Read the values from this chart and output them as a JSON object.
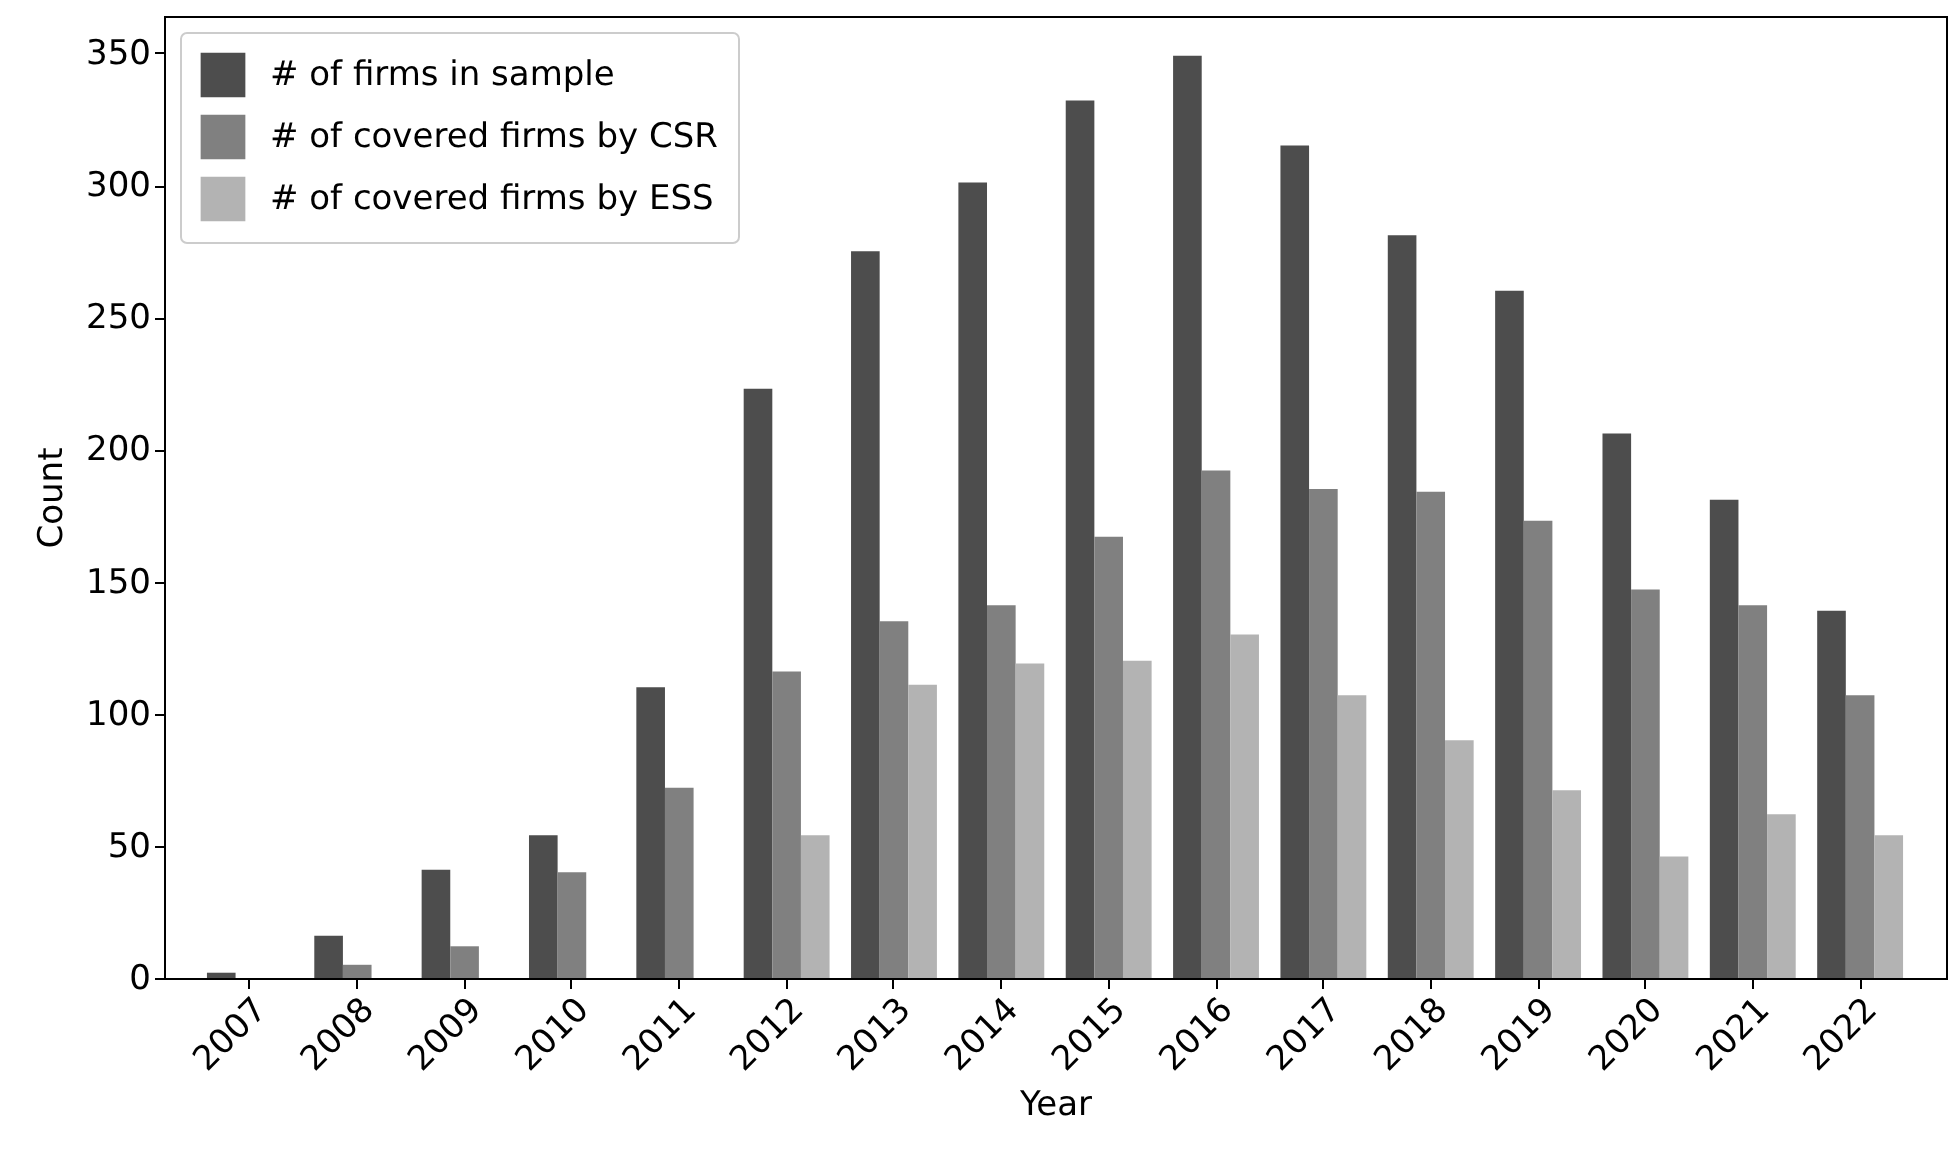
{
  "chart_data": {
    "type": "bar",
    "xlabel": "Year",
    "ylabel": "Count",
    "categories": [
      "2007",
      "2008",
      "2009",
      "2010",
      "2011",
      "2012",
      "2013",
      "2014",
      "2015",
      "2016",
      "2017",
      "2018",
      "2019",
      "2020",
      "2021",
      "2022"
    ],
    "series": [
      {
        "name": "# of firms in sample",
        "color": "#4d4d4d",
        "values": [
          2,
          16,
          41,
          54,
          110,
          223,
          275,
          301,
          332,
          349,
          315,
          281,
          260,
          206,
          181,
          139
        ]
      },
      {
        "name": "# of covered firms by CSR",
        "color": "#808080",
        "values": [
          0,
          5,
          12,
          40,
          72,
          116,
          135,
          141,
          167,
          192,
          185,
          184,
          173,
          147,
          141,
          107
        ]
      },
      {
        "name": "# of covered firms by ESS",
        "color": "#b3b3b3",
        "values": [
          0,
          0,
          0,
          0,
          0,
          54,
          111,
          119,
          120,
          130,
          107,
          90,
          71,
          46,
          62,
          54
        ]
      }
    ],
    "ylim": [
      0,
      364
    ],
    "yticks": [
      0,
      50,
      100,
      150,
      200,
      250,
      300,
      350
    ],
    "grid": false,
    "legend": "top left"
  }
}
